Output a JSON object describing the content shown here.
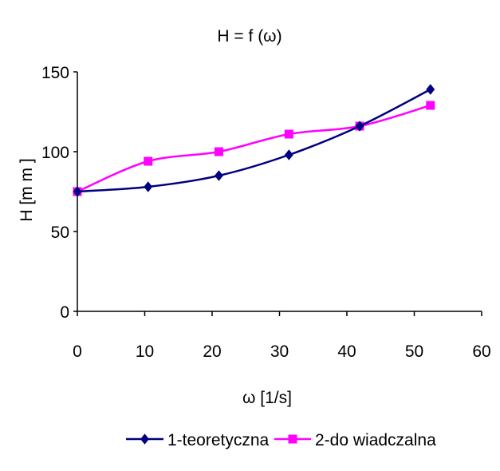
{
  "chart_data": {
    "type": "line",
    "title": "H = f (ω)",
    "xlabel": "ω [1/s]",
    "ylabel": "H [m m ]",
    "xlim": [
      0,
      60
    ],
    "ylim": [
      0,
      150
    ],
    "xticks": [
      0,
      10,
      20,
      30,
      40,
      50,
      60
    ],
    "yticks": [
      0,
      50,
      100,
      150
    ],
    "grid": false,
    "legend_position": "bottom",
    "series": [
      {
        "name": "1-teoretyczna",
        "color": "#000080",
        "marker": "diamond",
        "x": [
          0,
          10.5,
          21,
          31.4,
          41.9,
          52.4
        ],
        "y": [
          75,
          78,
          85,
          98,
          116,
          139
        ]
      },
      {
        "name": "2-do wiadczalna",
        "color": "#ff00ff",
        "marker": "square",
        "x": [
          0,
          10.5,
          21,
          31.4,
          41.9,
          52.4
        ],
        "y": [
          75,
          94,
          100,
          111,
          116,
          129
        ]
      }
    ]
  }
}
